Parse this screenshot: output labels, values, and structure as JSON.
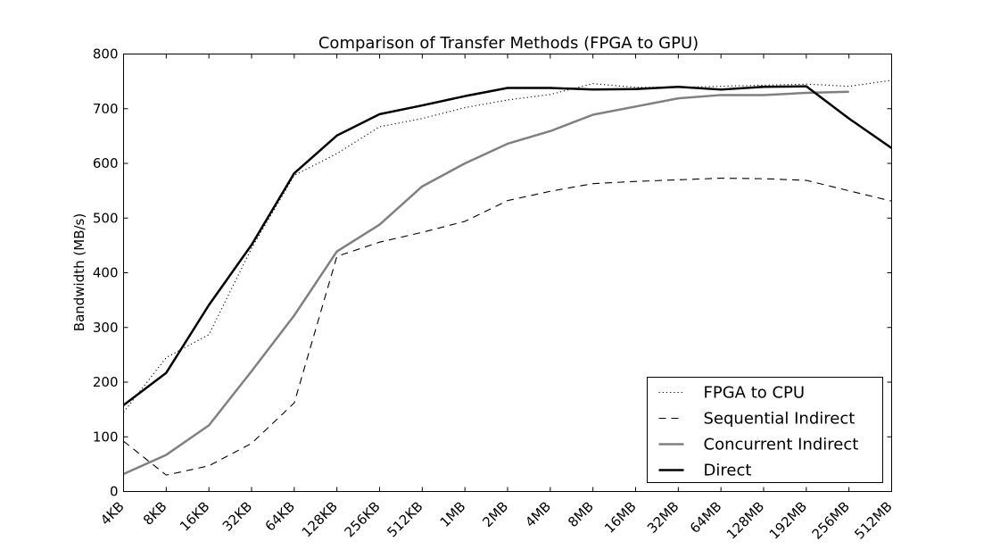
{
  "chart_data": {
    "type": "line",
    "title": "Comparison of Transfer Methods (FPGA to GPU)",
    "xlabel": "",
    "ylabel": "Bandwidth (MB/s)",
    "categories": [
      "4KB",
      "8KB",
      "16KB",
      "32KB",
      "64KB",
      "128KB",
      "256KB",
      "512KB",
      "1MB",
      "2MB",
      "4MB",
      "8MB",
      "16MB",
      "32MB",
      "64MB",
      "128MB",
      "192MB",
      "256MB",
      "512MB"
    ],
    "ylim": [
      0,
      800
    ],
    "yticks": [
      0,
      100,
      200,
      300,
      400,
      500,
      600,
      700,
      800
    ],
    "grid": false,
    "legend_position": "lower-right",
    "series": [
      {
        "name": "FPGA to CPU",
        "style": "dotted",
        "color": "#000000",
        "values": [
          145,
          245,
          287,
          445,
          578,
          618,
          667,
          682,
          702,
          716,
          726,
          746,
          739,
          739,
          741,
          743,
          745,
          741,
          752
        ]
      },
      {
        "name": "Sequential Indirect",
        "style": "dashed",
        "color": "#000000",
        "values": [
          92,
          30,
          47,
          88,
          162,
          430,
          456,
          474,
          494,
          532,
          549,
          563,
          567,
          570,
          573,
          572,
          569,
          550,
          531
        ]
      },
      {
        "name": "Concurrent Indirect",
        "style": "solid",
        "color": "#808080",
        "values": [
          32,
          67,
          121,
          220,
          322,
          439,
          488,
          558,
          600,
          636,
          659,
          689,
          704,
          719,
          725,
          725,
          729,
          731,
          null
        ]
      },
      {
        "name": "Direct",
        "style": "solid",
        "color": "#000000",
        "values": [
          158,
          217,
          341,
          451,
          582,
          651,
          690,
          706,
          723,
          738,
          738,
          735,
          736,
          740,
          735,
          740,
          741,
          682,
          628
        ]
      }
    ]
  }
}
